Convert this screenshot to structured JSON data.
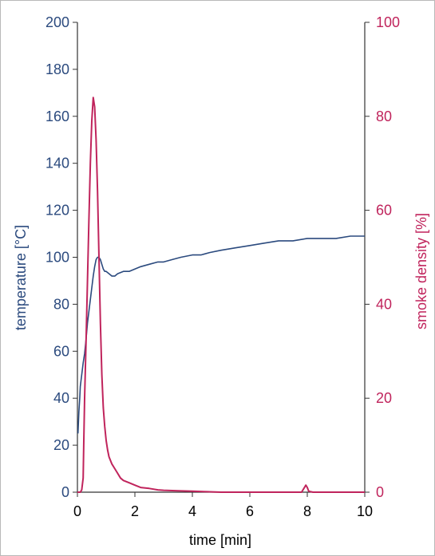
{
  "chart_data": {
    "type": "line",
    "xlabel": "time [min]",
    "ylabel_left": "temperature [°C]",
    "ylabel_right": "smoke density [%]",
    "xlim": [
      0,
      10
    ],
    "ylim_left": [
      0,
      200
    ],
    "ylim_right": [
      0,
      100
    ],
    "x_ticks": [
      0,
      2,
      4,
      6,
      8,
      10
    ],
    "y_left_ticks": [
      0,
      20,
      40,
      60,
      80,
      100,
      120,
      140,
      160,
      180,
      200
    ],
    "y_right_ticks": [
      0,
      20,
      40,
      60,
      80,
      100
    ],
    "grid": false,
    "colors": {
      "temperature": "#2b4a7e",
      "smoke": "#c0245c",
      "axis": "#333333"
    },
    "series": [
      {
        "key": "temperature",
        "axis": "left",
        "x": [
          0.02,
          0.05,
          0.08,
          0.1,
          0.15,
          0.2,
          0.25,
          0.3,
          0.35,
          0.4,
          0.45,
          0.5,
          0.55,
          0.6,
          0.65,
          0.7,
          0.75,
          0.8,
          0.85,
          0.9,
          0.95,
          1.0,
          1.1,
          1.2,
          1.3,
          1.4,
          1.6,
          1.8,
          2.0,
          2.2,
          2.5,
          2.8,
          3.0,
          3.3,
          3.6,
          4.0,
          4.3,
          4.6,
          5.0,
          5.5,
          6.0,
          6.5,
          7.0,
          7.5,
          8.0,
          8.5,
          9.0,
          9.5,
          10.0
        ],
        "y": [
          25,
          34,
          40,
          45,
          50,
          55,
          59,
          65,
          72,
          77,
          82,
          87,
          92,
          96,
          99,
          100,
          100,
          99,
          97,
          95,
          94,
          94,
          93,
          92,
          92,
          93,
          94,
          94,
          95,
          96,
          97,
          98,
          98,
          99,
          100,
          101,
          101,
          102,
          103,
          104,
          105,
          106,
          107,
          107,
          108,
          108,
          108,
          109,
          109
        ]
      },
      {
        "key": "smoke",
        "axis": "right",
        "x": [
          0,
          0.1,
          0.15,
          0.2,
          0.22,
          0.25,
          0.3,
          0.35,
          0.4,
          0.45,
          0.5,
          0.55,
          0.6,
          0.65,
          0.7,
          0.75,
          0.8,
          0.85,
          0.9,
          0.95,
          1.0,
          1.05,
          1.1,
          1.2,
          1.3,
          1.4,
          1.5,
          1.6,
          1.8,
          2.0,
          2.2,
          2.5,
          2.8,
          3.0,
          3.5,
          4.0,
          4.5,
          5.0,
          6.0,
          7.0,
          7.8,
          7.95,
          8.0,
          8.05,
          8.2,
          9.0,
          10.0
        ],
        "y": [
          0,
          0,
          0.5,
          3,
          10,
          20,
          32,
          45,
          58,
          70,
          79,
          84,
          82,
          75,
          64,
          50,
          36,
          25,
          18,
          14,
          11,
          9,
          7.5,
          6,
          5,
          4,
          3,
          2.5,
          2,
          1.5,
          1,
          0.8,
          0.5,
          0.4,
          0.3,
          0.2,
          0.1,
          0,
          0,
          0,
          0,
          1.5,
          1,
          0.2,
          0,
          0,
          0
        ]
      }
    ]
  }
}
